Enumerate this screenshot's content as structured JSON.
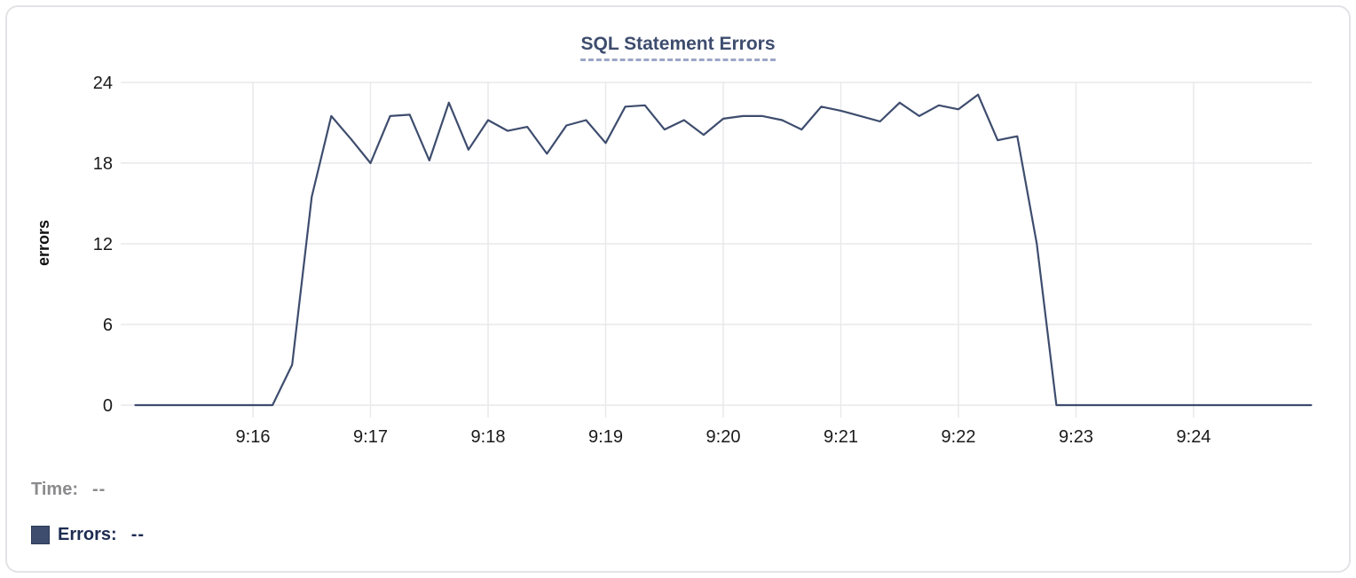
{
  "chart_data": {
    "type": "line",
    "title": "SQL Statement Errors",
    "ylabel": "errors",
    "xlabel": "",
    "yticks": [
      0,
      6,
      12,
      18,
      24
    ],
    "ylim": [
      0,
      24
    ],
    "xlim": [
      "9:15:00",
      "9:25:00"
    ],
    "xtick_labels": [
      "9:16",
      "9:17",
      "9:18",
      "9:19",
      "9:20",
      "9:21",
      "9:22",
      "9:23",
      "9:24"
    ],
    "interval_seconds": 10,
    "grid": true,
    "legend_position": "bottom-left",
    "series": [
      {
        "name": "Errors",
        "color": "#3e4d6e",
        "values": [
          0,
          0,
          0,
          0,
          0,
          0,
          0,
          0,
          3,
          15.5,
          21.5,
          19.8,
          18,
          21.5,
          21.6,
          18.2,
          22.5,
          19,
          21.2,
          20.4,
          20.7,
          18.7,
          20.8,
          21.2,
          19.5,
          22.2,
          22.3,
          20.5,
          21.2,
          20.1,
          21.3,
          21.5,
          21.5,
          21.2,
          20.5,
          22.2,
          21.9,
          21.5,
          21.1,
          22.5,
          21.5,
          22.3,
          22,
          23.1,
          19.7,
          20,
          12,
          0,
          0,
          0,
          0,
          0,
          0,
          0,
          0,
          0,
          0,
          0,
          0,
          0,
          0
        ]
      }
    ]
  },
  "legend": {
    "time_label": "Time:",
    "time_value": "--",
    "errors_label": "Errors:",
    "errors_value": "--",
    "swatch_color": "#3e4c6e"
  },
  "colors": {
    "grid": "#e9e9eb",
    "tick_text": "#1a1a1a",
    "line": "#3e4d6e"
  }
}
